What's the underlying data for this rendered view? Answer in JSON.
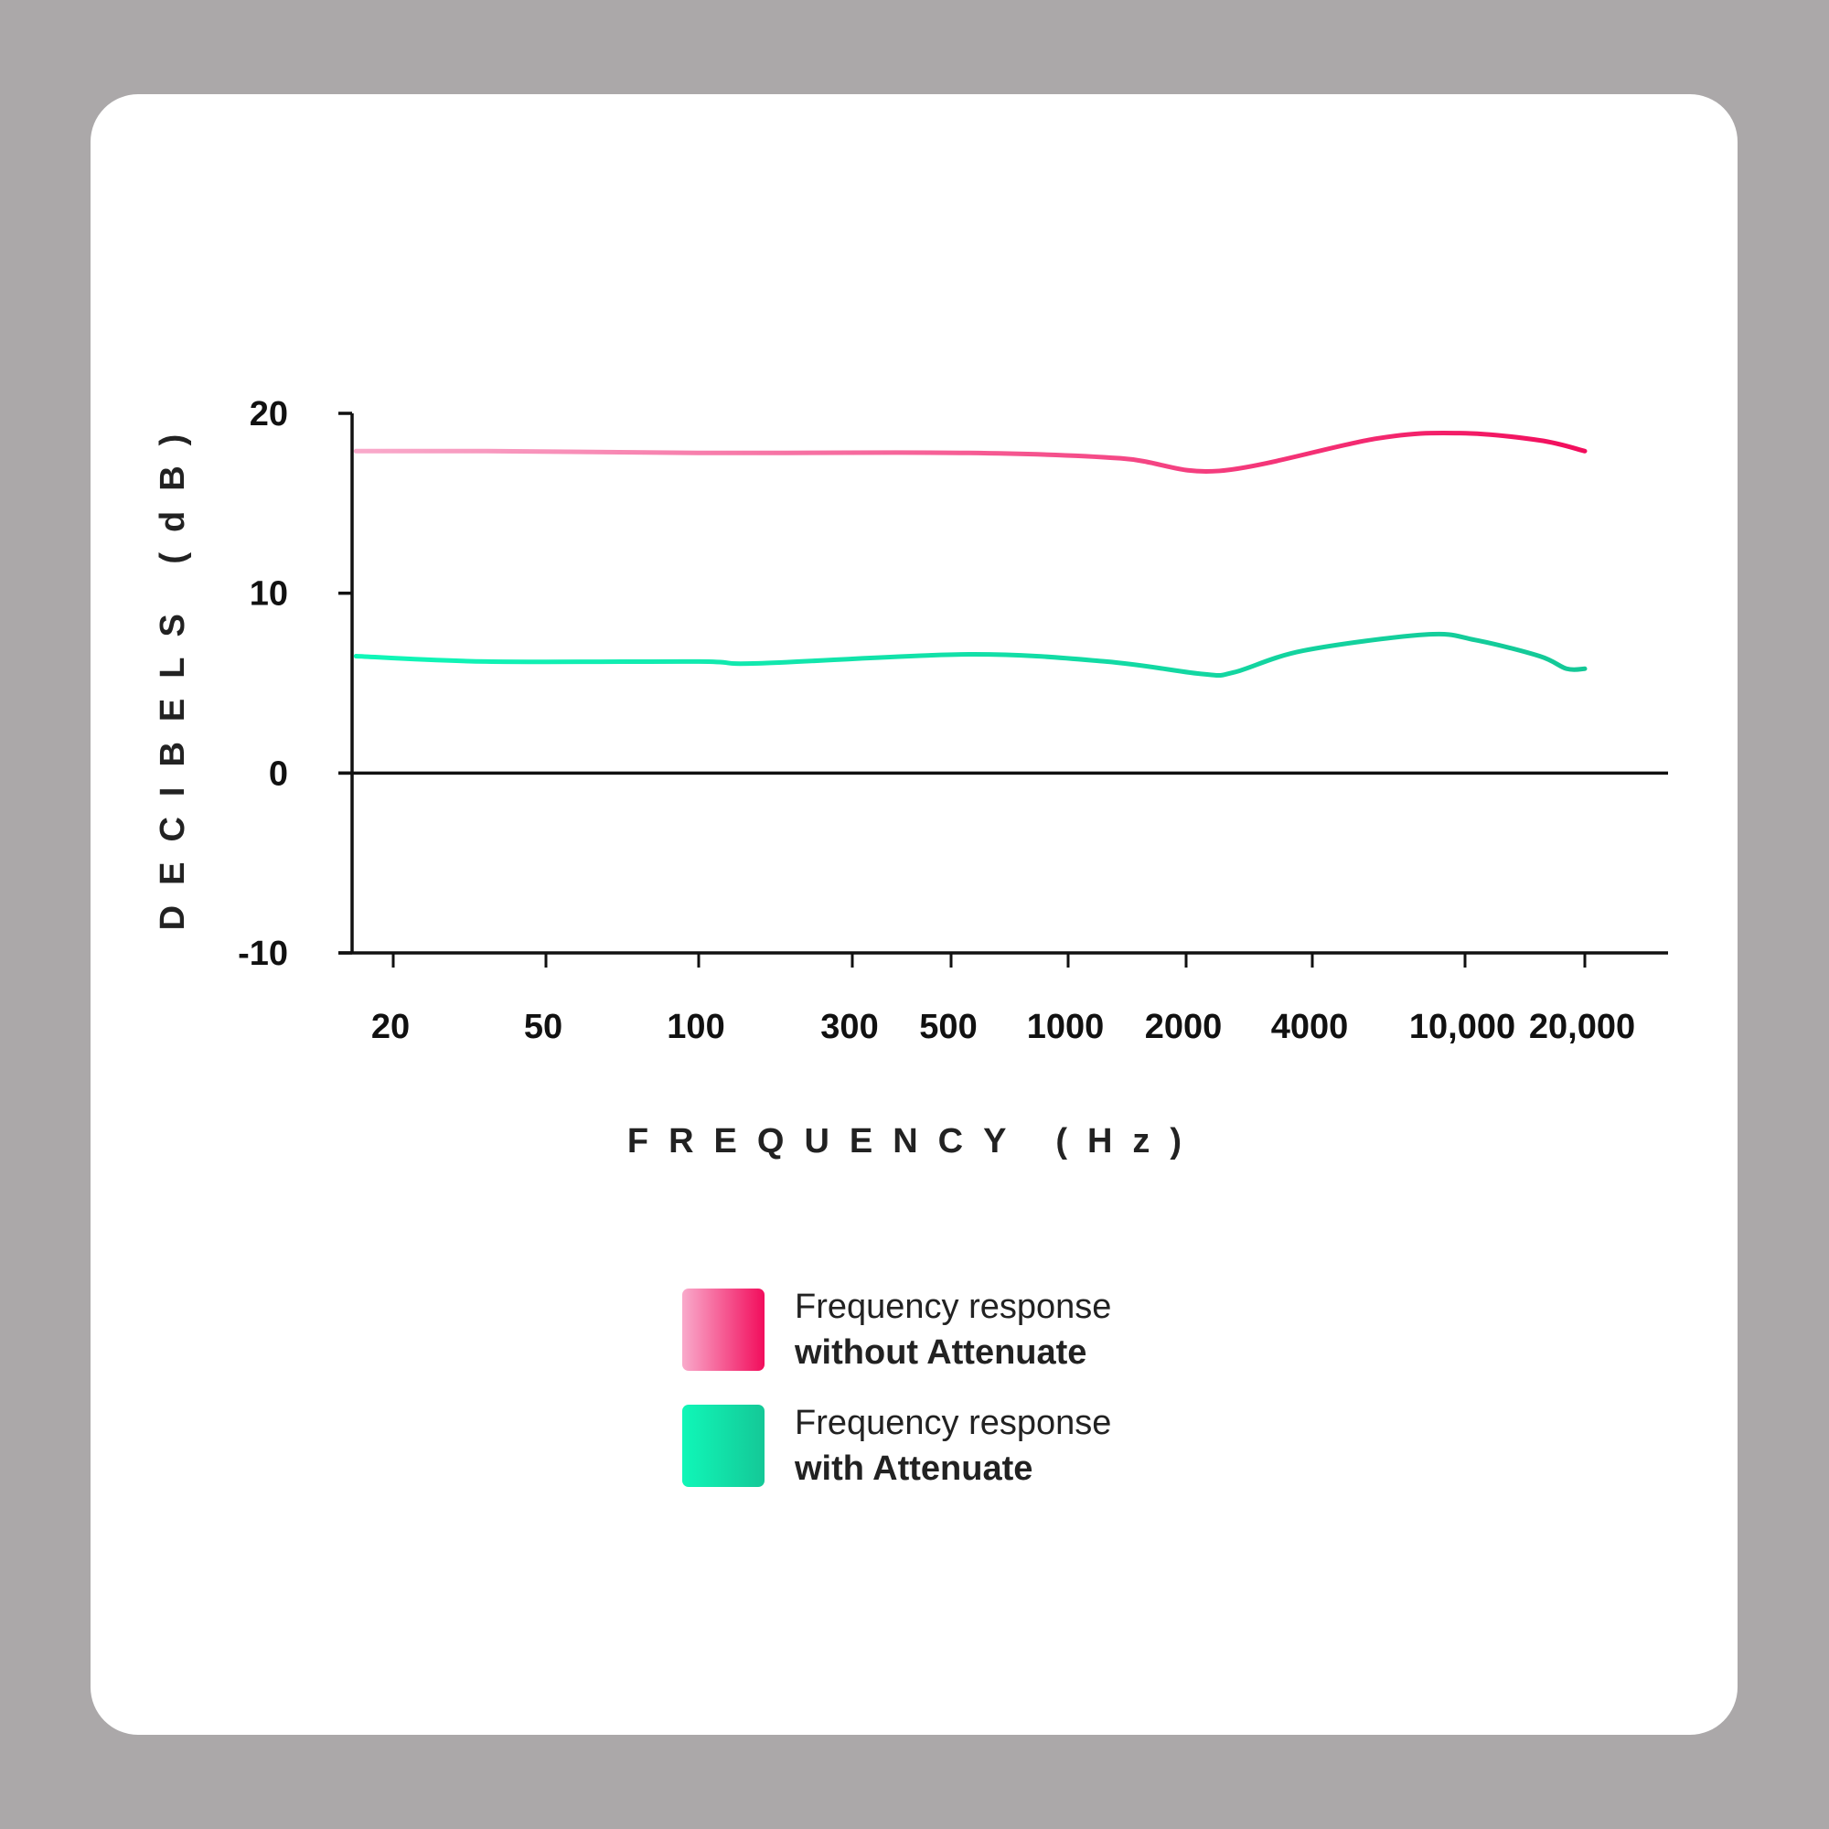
{
  "chart_data": {
    "type": "line",
    "xlabel": "FREQUENCY (Hz)",
    "ylabel": "DECIBELS (dB)",
    "x_scale": "log (tick-spaced)",
    "ylim": [
      -10,
      20
    ],
    "y_ticks": [
      20,
      10,
      0,
      -10
    ],
    "x_ticks": [
      {
        "value": 20,
        "label": "20"
      },
      {
        "value": 50,
        "label": "50"
      },
      {
        "value": 100,
        "label": "100"
      },
      {
        "value": 300,
        "label": "300"
      },
      {
        "value": 500,
        "label": "500"
      },
      {
        "value": 1000,
        "label": "1000"
      },
      {
        "value": 2000,
        "label": "2000"
      },
      {
        "value": 4000,
        "label": "4000"
      },
      {
        "value": 10000,
        "label": "10,000"
      },
      {
        "value": 20000,
        "label": "20,000"
      }
    ],
    "grid": false,
    "legend_placement": "bottom-center",
    "series": [
      {
        "name": "Frequency response without Attenuate",
        "legend_line1": "Frequency response",
        "legend_line2": "without Attenuate",
        "color_start": "#f9aacb",
        "color_end": "#f20d5c",
        "x": [
          16,
          35,
          100,
          555,
          1360,
          2400,
          5880,
          9700,
          15400,
          20000
        ],
        "y": [
          17.9,
          17.9,
          17.8,
          17.8,
          17.5,
          16.8,
          18.6,
          18.9,
          18.5,
          17.9
        ]
      },
      {
        "name": "Frequency response with Attenuate",
        "legend_line1": "Frequency response",
        "legend_line2": "with Attenuate",
        "color_start": "#10f7b8",
        "color_end": "#14c897",
        "x": [
          16,
          35,
          100,
          153,
          555,
          1250,
          2200,
          2600,
          3800,
          7900,
          10600,
          15400,
          18000,
          20000
        ],
        "y": [
          6.5,
          6.2,
          6.2,
          6.1,
          6.6,
          6.2,
          5.5,
          5.6,
          6.8,
          7.7,
          7.4,
          6.5,
          5.8,
          5.8
        ]
      }
    ]
  }
}
